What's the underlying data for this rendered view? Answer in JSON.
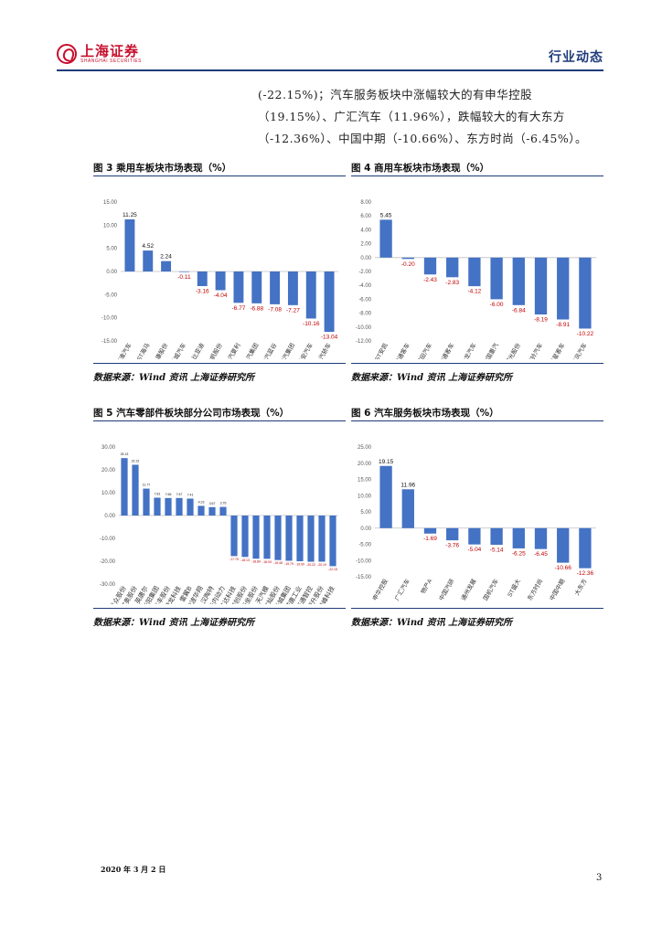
{
  "header": {
    "logo_cn": "上海证券",
    "logo_en": "SHANGHAI SECURITIES",
    "section": "行业动态"
  },
  "body_text": "(-22.15%)；汽车服务板块中涨幅较大的有申华控股（19.15%）、广汇汽车（11.96%），跌幅较大的有大东方（-12.36%）、中国中期（-10.66%）、东方时尚（-6.45%）。",
  "figures": {
    "fig3": {
      "title": "图 3 乘用车板块市场表现（%）",
      "source": "数据来源：Wind 资讯 上海证券研究所"
    },
    "fig4": {
      "title": "图 4 商用车板块市场表现（%）",
      "source": "数据来源：Wind 资讯 上海证券研究所"
    },
    "fig5": {
      "title": "图 5 汽车零部件板块部分公司市场表现（%）",
      "source": "数据来源：Wind 资讯 上海证券研究所"
    },
    "fig6": {
      "title": "图 6 汽车服务板块市场表现（%）",
      "source": "数据来源：Wind 资讯 上海证券研究所"
    }
  },
  "chart_data": [
    {
      "id": "fig3",
      "type": "bar",
      "title": "图 3 乘用车板块市场表现（%）",
      "ylim": [
        -15,
        15
      ],
      "yticks": [
        "15.00",
        "10.00",
        "5.00",
        "0.00",
        "-5.00",
        "-10.00",
        "-15.00"
      ],
      "categories": [
        "江淮汽车",
        "*ST海马",
        "小康股份",
        "长城汽车",
        "比亚迪",
        "力帆股份",
        "一汽夏利",
        "上汽集团",
        "北汽蓝谷",
        "广汽集团",
        "长安汽车",
        "一汽轿车"
      ],
      "values": [
        11.25,
        4.52,
        2.24,
        -0.11,
        -3.16,
        -4.04,
        -6.77,
        -6.88,
        -7.08,
        -7.27,
        -10.16,
        -13.04
      ],
      "labels": [
        "11.25",
        "4.52",
        "2.24",
        "-0.11",
        "-3.16",
        "-4.04",
        "-6.77",
        "-6.88",
        "-7.08",
        "-7.27",
        "-10.16",
        "-13.04"
      ]
    },
    {
      "id": "fig4",
      "type": "bar",
      "title": "图 4 商用车板块市场表现（%）",
      "ylim": [
        -12,
        8
      ],
      "yticks": [
        "8.00",
        "6.00",
        "4.00",
        "2.00",
        "0.00",
        "-2.00",
        "-4.00",
        "-6.00",
        "-8.00",
        "-10.00",
        "-12.00"
      ],
      "categories": [
        "*ST安凯",
        "宇通客车",
        "福田汽车",
        "中通客车",
        "金龙汽车",
        "中国重汽",
        "曙光股份",
        "江铃汽车",
        "亚星客车",
        "东风汽车"
      ],
      "values": [
        5.45,
        -0.2,
        -2.43,
        -2.83,
        -4.12,
        -6.0,
        -6.84,
        -8.19,
        -8.91,
        -10.22
      ],
      "labels": [
        "5.45",
        "-0.20",
        "-2.43",
        "-2.83",
        "-4.12",
        "-6.00",
        "-6.84",
        "-8.19",
        "-8.91",
        "-10.22"
      ]
    },
    {
      "id": "fig5",
      "type": "bar",
      "title": "图 5 汽车零部件板块部分公司市场表现（%）",
      "ylim": [
        -30,
        30
      ],
      "yticks": [
        "30.00",
        "20.00",
        "10.00",
        "0.00",
        "-10.00",
        "-20.00",
        "-30.00"
      ],
      "categories": [
        "凯众股份",
        "富奥股份",
        "英唐尔",
        "华阳集团",
        "兆丰股份",
        "腾龙科技",
        "雷翼B",
        "宁波华翔",
        "汉陶特",
        "云内动力",
        "旷达科技",
        "联创股份",
        "新坐股份",
        "天汽模",
        "文灿股份",
        "长城集团",
        "威唐工业",
        "万通智控",
        "旭升股份",
        "继峰科技"
      ],
      "values": [
        25.13,
        22.22,
        11.77,
        7.81,
        7.66,
        7.67,
        7.41,
        4.23,
        3.67,
        3.76,
        -17.75,
        -18.13,
        -18.89,
        -18.93,
        -19.48,
        -19.79,
        -19.99,
        -20.22,
        -20.19,
        -22.15
      ],
      "labels": [
        "25.13",
        "22.22",
        "11.77",
        "7.81",
        "7.66",
        "7.67",
        "7.41",
        "4.23",
        "3.67",
        "3.76",
        "-17.75",
        "-18.13",
        "-18.89",
        "-18.93",
        "-19.48",
        "-19.79",
        "-19.99",
        "-20.22",
        "-20.19",
        "-22.15"
      ]
    },
    {
      "id": "fig6",
      "type": "bar",
      "title": "图 6 汽车服务板块市场表现（%）",
      "ylim": [
        -15,
        25
      ],
      "yticks": [
        "25.00",
        "20.00",
        "15.00",
        "10.00",
        "5.00",
        "0.00",
        "-5.00",
        "-10.00",
        "-15.00"
      ],
      "categories": [
        "申华控股",
        "广汇汽车",
        "物产A",
        "中国汽研",
        "通州发展",
        "国机汽车",
        "ST盛大",
        "东方时尚",
        "中国中期",
        "大东方"
      ],
      "values": [
        19.15,
        11.96,
        -1.69,
        -3.76,
        -5.04,
        -5.14,
        -6.25,
        -6.45,
        -10.66,
        -12.36
      ],
      "labels": [
        "19.15",
        "11.96",
        "-1.69",
        "-3.76",
        "-5.04",
        "-5.14",
        "-6.25",
        "-6.45",
        "-10.66",
        "-12.36"
      ]
    }
  ],
  "colors": {
    "bar": "#4472c4",
    "negative_label": "#c00000",
    "rule": "#1f3b7a",
    "logo": "#c8102e"
  },
  "footer": {
    "date": "2020 年 3 月 2 日",
    "page": "3"
  }
}
